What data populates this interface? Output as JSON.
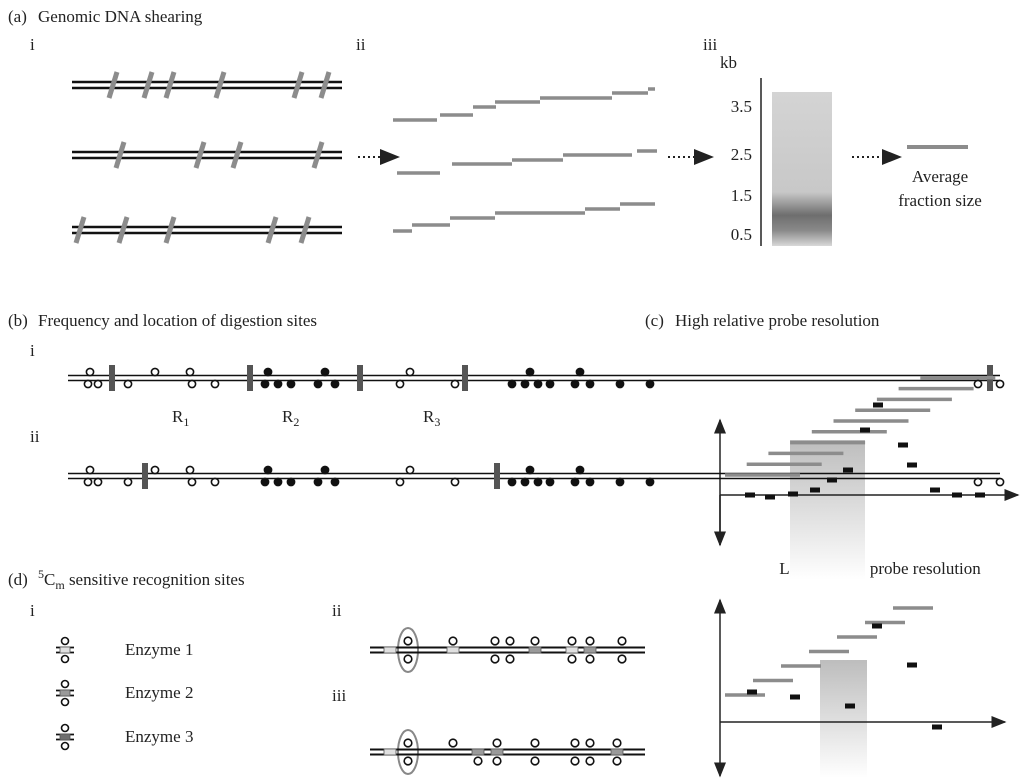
{
  "panel_a": {
    "label": "(a)",
    "title": "Genomic DNA shearing",
    "steps": [
      "i",
      "ii",
      "iii"
    ],
    "gel": {
      "unit": "kb",
      "ticks": [
        "3.5",
        "2.5",
        "1.5",
        "0.5"
      ]
    },
    "result": [
      "Average",
      "fraction size"
    ]
  },
  "panel_b": {
    "label": "(b)",
    "title": "Frequency and location of digestion sites",
    "rows": [
      "i",
      "ii"
    ],
    "regions": [
      {
        "base": "R",
        "sub": "1"
      },
      {
        "base": "R",
        "sub": "2"
      },
      {
        "base": "R",
        "sub": "3"
      }
    ]
  },
  "panel_c": {
    "label": "(c)",
    "title": "High relative probe resolution",
    "subtitle": "Low relative probe resolution"
  },
  "panel_d": {
    "label": "(d)",
    "title": {
      "sup": "5",
      "base": "C",
      "sub": "m",
      "rest": " sensitive recognition sites"
    },
    "rows": [
      "i",
      "ii",
      "iii"
    ],
    "enzymes": [
      "Enzyme 1",
      "Enzyme 2",
      "Enzyme 3"
    ]
  }
}
